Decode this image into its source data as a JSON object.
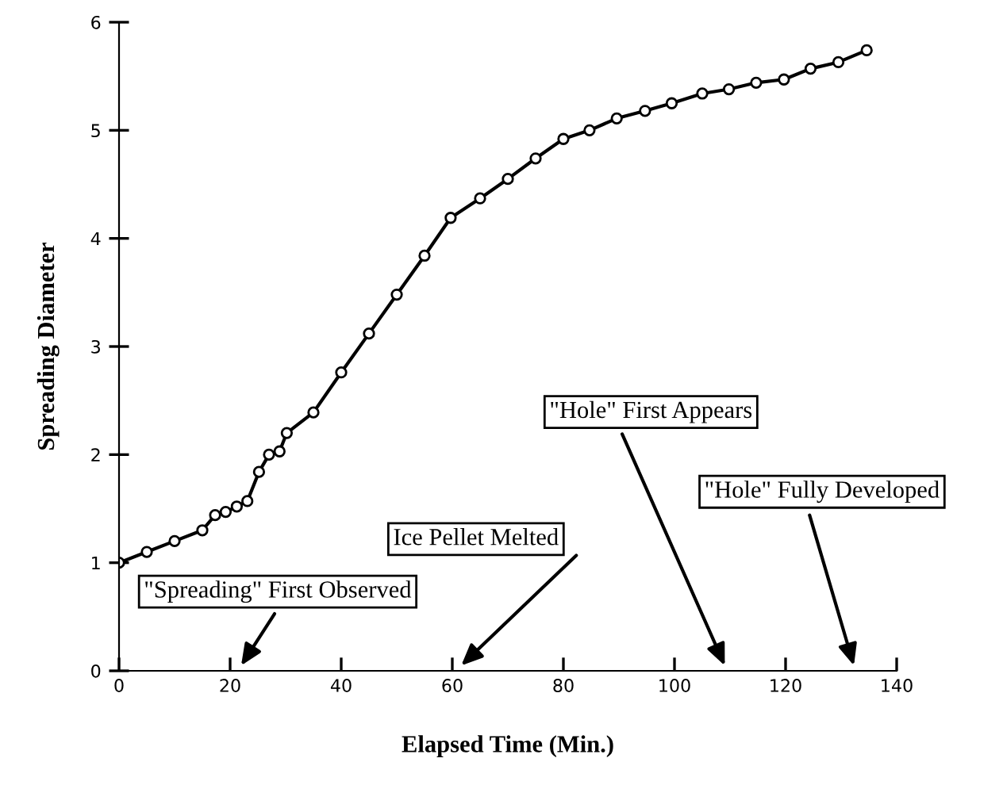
{
  "chart_data": {
    "type": "line",
    "xlabel": "Elapsed Time (Min.)",
    "ylabel": "Spreading Diameter",
    "series": [
      {
        "color": "#000000",
        "x": [
          0,
          5,
          10,
          15,
          17.3,
          19.2,
          21.2,
          23.1,
          25.2,
          27,
          28.9,
          30.2,
          35,
          40,
          45,
          50,
          55,
          59.7,
          65,
          70,
          75,
          80,
          84.7,
          89.6,
          94.7,
          99.5,
          105,
          109.8,
          114.7,
          119.7,
          124.5,
          129.5,
          134.6
        ],
        "values": [
          1.0,
          1.1,
          1.2,
          1.3,
          1.44,
          1.47,
          1.52,
          1.57,
          1.84,
          2.0,
          2.03,
          2.2,
          2.39,
          2.76,
          3.12,
          3.48,
          3.84,
          4.19,
          4.37,
          4.55,
          4.74,
          4.92,
          5.0,
          5.11,
          5.18,
          5.25,
          5.34,
          5.38,
          5.44,
          5.47,
          5.57,
          5.63,
          5.74
        ]
      }
    ],
    "xlim": [
      0,
      140
    ],
    "xticks": [
      0,
      20,
      40,
      60,
      80,
      100,
      120,
      140
    ],
    "ylim": [
      0,
      6
    ],
    "yticks": [
      0,
      1,
      2,
      3,
      4,
      5,
      6
    ],
    "marker": "circle",
    "line_style": "solid",
    "grid": false,
    "legend": false,
    "annotations": [
      "\"Spreading\" First Observed",
      "Ice Pellet Melted",
      "\"Hole\" First Appears",
      "\"Hole\" Fully Developed"
    ]
  }
}
